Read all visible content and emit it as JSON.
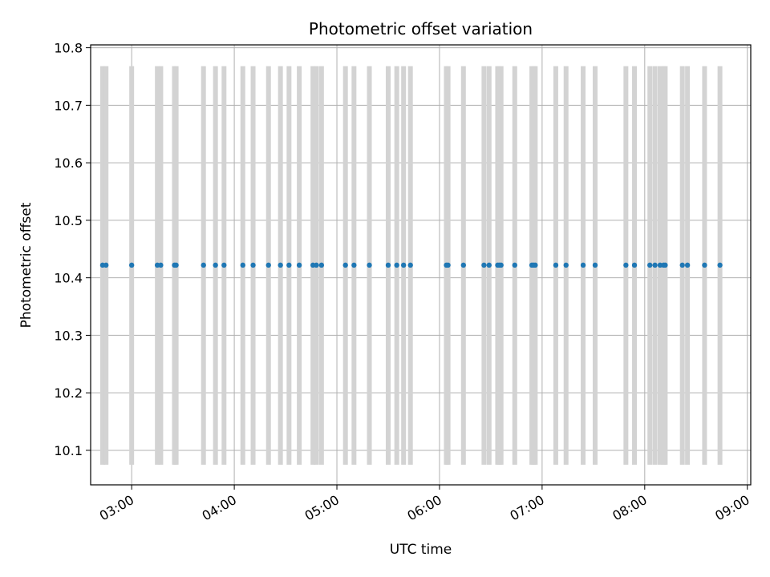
{
  "chart_data": {
    "type": "scatter",
    "title": "Photometric offset variation",
    "xlabel": "UTC time",
    "ylabel": "Photometric offset",
    "x_ticks": [
      "03:00",
      "04:00",
      "05:00",
      "06:00",
      "07:00",
      "08:00",
      "09:00"
    ],
    "y_ticks": [
      "10.1",
      "10.2",
      "10.3",
      "10.4",
      "10.5",
      "10.6",
      "10.7",
      "10.8"
    ],
    "xlim": [
      "02:36",
      "09:02"
    ],
    "ylim": [
      10.04,
      10.805
    ],
    "grid": true,
    "marker_color": "#1f77b4",
    "band_color": "#d3d3d3",
    "band_range": [
      10.075,
      10.768
    ],
    "points": {
      "x": [
        "02:43",
        "02:45",
        "03:00",
        "03:15",
        "03:17",
        "03:25",
        "03:26",
        "03:42",
        "03:49",
        "03:54",
        "04:05",
        "04:11",
        "04:20",
        "04:27",
        "04:32",
        "04:38",
        "04:46",
        "04:48",
        "04:51",
        "05:05",
        "05:10",
        "05:19",
        "05:30",
        "05:35",
        "05:39",
        "05:43",
        "06:04",
        "06:05",
        "06:14",
        "06:26",
        "06:29",
        "06:34",
        "06:35",
        "06:36",
        "06:44",
        "06:54",
        "06:55",
        "06:56",
        "07:08",
        "07:14",
        "07:24",
        "07:31",
        "07:49",
        "07:54",
        "08:03",
        "08:06",
        "08:09",
        "08:11",
        "08:12",
        "08:22",
        "08:25",
        "08:35",
        "08:44"
      ],
      "y": [
        10.422,
        10.422,
        10.422,
        10.422,
        10.422,
        10.422,
        10.422,
        10.422,
        10.422,
        10.422,
        10.422,
        10.422,
        10.422,
        10.422,
        10.422,
        10.422,
        10.422,
        10.422,
        10.422,
        10.422,
        10.422,
        10.422,
        10.422,
        10.422,
        10.422,
        10.422,
        10.422,
        10.422,
        10.422,
        10.422,
        10.422,
        10.422,
        10.422,
        10.422,
        10.422,
        10.422,
        10.422,
        10.422,
        10.422,
        10.422,
        10.422,
        10.422,
        10.422,
        10.422,
        10.422,
        10.422,
        10.422,
        10.422,
        10.422,
        10.422,
        10.422,
        10.422,
        10.422
      ]
    }
  }
}
